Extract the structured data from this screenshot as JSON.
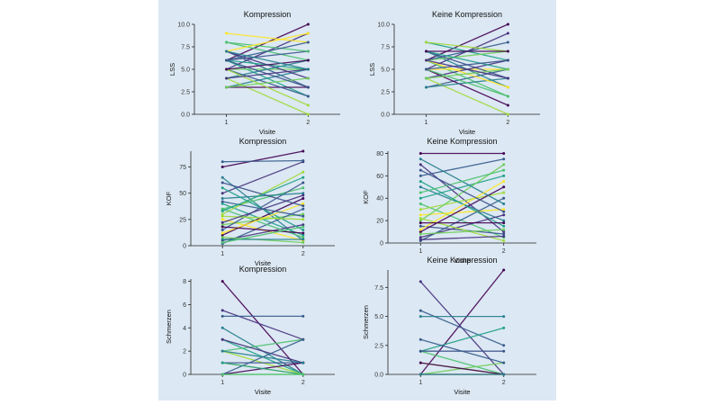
{
  "palette": [
    "#440154",
    "#46327e",
    "#365c8d",
    "#277f8e",
    "#1fa187",
    "#4ac16d",
    "#a0da39",
    "#fde725",
    "#6ece58",
    "#3b528b"
  ],
  "chart_data": [
    {
      "type": "line",
      "title": "Kompression",
      "xlabel": "Visite",
      "ylabel": "LSS",
      "x": [
        "1",
        "2"
      ],
      "ylim": [
        0,
        10
      ],
      "yticks": [
        "0.0",
        "2.5",
        "5.0",
        "7.5",
        "10.0"
      ],
      "grid": false,
      "series": [
        {
          "values": [
            6,
            10
          ]
        },
        {
          "values": [
            5,
            9
          ]
        },
        {
          "values": [
            7,
            3
          ]
        },
        {
          "values": [
            3,
            5
          ]
        },
        {
          "values": [
            6,
            2
          ]
        },
        {
          "values": [
            8,
            6
          ]
        },
        {
          "values": [
            4,
            0
          ]
        },
        {
          "values": [
            9,
            8
          ]
        },
        {
          "values": [
            5,
            5
          ]
        },
        {
          "values": [
            6,
            7
          ]
        },
        {
          "values": [
            3,
            3
          ]
        },
        {
          "values": [
            7,
            4
          ]
        },
        {
          "values": [
            5,
            2
          ]
        },
        {
          "values": [
            4,
            6
          ]
        },
        {
          "values": [
            6,
            5
          ]
        },
        {
          "values": [
            8,
            7
          ]
        },
        {
          "values": [
            5,
            1
          ]
        },
        {
          "values": [
            7,
            9
          ]
        },
        {
          "values": [
            3,
            4
          ]
        },
        {
          "values": [
            6,
            3
          ]
        },
        {
          "values": [
            5,
            6
          ]
        },
        {
          "values": [
            4,
            5
          ]
        },
        {
          "values": [
            6,
            8
          ]
        },
        {
          "values": [
            7,
            5
          ]
        }
      ]
    },
    {
      "type": "line",
      "title": "Keine Kompression",
      "xlabel": "Visite",
      "ylabel": "LSS",
      "x": [
        "1",
        "2"
      ],
      "ylim": [
        0,
        10
      ],
      "yticks": [
        "0.0",
        "2.5",
        "5.0",
        "7.5",
        "10.0"
      ],
      "grid": false,
      "series": [
        {
          "values": [
            6,
            10
          ]
        },
        {
          "values": [
            5,
            9
          ]
        },
        {
          "values": [
            3,
            5
          ]
        },
        {
          "values": [
            7,
            3
          ]
        },
        {
          "values": [
            8,
            6
          ]
        },
        {
          "values": [
            6,
            2
          ]
        },
        {
          "values": [
            4,
            0
          ]
        },
        {
          "values": [
            5,
            5
          ]
        },
        {
          "values": [
            6,
            7
          ]
        },
        {
          "values": [
            7,
            4
          ]
        },
        {
          "values": [
            5,
            1
          ]
        },
        {
          "values": [
            4,
            6
          ]
        },
        {
          "values": [
            6,
            8
          ]
        },
        {
          "values": [
            3,
            4
          ]
        },
        {
          "values": [
            7,
            5
          ]
        },
        {
          "values": [
            5,
            2
          ]
        },
        {
          "values": [
            8,
            7
          ]
        },
        {
          "values": [
            6,
            3
          ]
        },
        {
          "values": [
            4,
            5
          ]
        },
        {
          "values": [
            5,
            6
          ]
        },
        {
          "values": [
            7,
            7
          ]
        },
        {
          "values": [
            6,
            4
          ]
        }
      ]
    },
    {
      "type": "line",
      "title": "Kompression",
      "xlabel": "Visite",
      "ylabel": "KOF",
      "x": [
        "1",
        "2"
      ],
      "ylim": [
        0,
        90
      ],
      "yticks": [
        "0",
        "25",
        "50",
        "75"
      ],
      "grid": false,
      "series": [
        {
          "values": [
            75,
            90
          ]
        },
        {
          "values": [
            50,
            80
          ]
        },
        {
          "values": [
            80,
            81
          ]
        },
        {
          "values": [
            65,
            5
          ]
        },
        {
          "values": [
            40,
            10
          ]
        },
        {
          "values": [
            35,
            55
          ]
        },
        {
          "values": [
            30,
            70
          ]
        },
        {
          "values": [
            25,
            5
          ]
        },
        {
          "values": [
            20,
            30
          ]
        },
        {
          "values": [
            15,
            60
          ]
        },
        {
          "values": [
            10,
            45
          ]
        },
        {
          "values": [
            5,
            20
          ]
        },
        {
          "values": [
            2,
            35
          ]
        },
        {
          "values": [
            45,
            50
          ]
        },
        {
          "values": [
            55,
            15
          ]
        },
        {
          "values": [
            35,
            8
          ]
        },
        {
          "values": [
            28,
            25
          ]
        },
        {
          "values": [
            12,
            40
          ]
        },
        {
          "values": [
            8,
            3
          ]
        },
        {
          "values": [
            60,
            38
          ]
        },
        {
          "values": [
            18,
            12
          ]
        },
        {
          "values": [
            22,
            48
          ]
        },
        {
          "values": [
            42,
            28
          ]
        },
        {
          "values": [
            6,
            6
          ]
        },
        {
          "values": [
            33,
            65
          ]
        },
        {
          "values": [
            3,
            18
          ]
        }
      ]
    },
    {
      "type": "line",
      "title": "Keine Kompression",
      "xlabel": "Visite",
      "ylabel": "KOF",
      "x": [
        "1",
        "2"
      ],
      "ylim": [
        0,
        82
      ],
      "yticks": [
        "0",
        "20",
        "40",
        "60",
        "80"
      ],
      "grid": false,
      "series": [
        {
          "values": [
            80,
            80
          ]
        },
        {
          "values": [
            70,
            10
          ]
        },
        {
          "values": [
            60,
            75
          ]
        },
        {
          "values": [
            50,
            20
          ]
        },
        {
          "values": [
            40,
            60
          ]
        },
        {
          "values": [
            35,
            5
          ]
        },
        {
          "values": [
            30,
            45
          ]
        },
        {
          "values": [
            25,
            30
          ]
        },
        {
          "values": [
            20,
            70
          ]
        },
        {
          "values": [
            15,
            8
          ]
        },
        {
          "values": [
            10,
            50
          ]
        },
        {
          "values": [
            5,
            25
          ]
        },
        {
          "values": [
            2,
            40
          ]
        },
        {
          "values": [
            75,
            35
          ]
        },
        {
          "values": [
            55,
            15
          ]
        },
        {
          "values": [
            45,
            65
          ]
        },
        {
          "values": [
            22,
            2
          ]
        },
        {
          "values": [
            12,
            55
          ]
        },
        {
          "values": [
            8,
            12
          ]
        },
        {
          "values": [
            65,
            28
          ]
        },
        {
          "values": [
            18,
            18
          ]
        },
        {
          "values": [
            3,
            6
          ]
        }
      ]
    },
    {
      "type": "line",
      "title": "Kompression",
      "xlabel": "Visite",
      "ylabel": "Schmerzen",
      "x": [
        "1",
        "2"
      ],
      "ylim": [
        0,
        8.2
      ],
      "yticks": [
        "0",
        "2",
        "4",
        "6",
        "8"
      ],
      "grid": false,
      "series": [
        {
          "values": [
            8,
            0
          ]
        },
        {
          "values": [
            5.5,
            3
          ]
        },
        {
          "values": [
            5,
            5
          ]
        },
        {
          "values": [
            4,
            0
          ]
        },
        {
          "values": [
            3,
            0
          ]
        },
        {
          "values": [
            2,
            3
          ]
        },
        {
          "values": [
            2,
            0
          ]
        },
        {
          "values": [
            1,
            0
          ]
        },
        {
          "values": [
            0,
            0
          ]
        },
        {
          "values": [
            1,
            1
          ]
        },
        {
          "values": [
            0,
            1
          ]
        },
        {
          "values": [
            3,
            1
          ]
        },
        {
          "values": [
            0,
            3
          ]
        },
        {
          "values": [
            2,
            1
          ]
        },
        {
          "values": [
            1,
            0
          ]
        },
        {
          "values": [
            0,
            0
          ]
        }
      ]
    },
    {
      "type": "line",
      "title": "Keine Kompression",
      "xlabel": "Visite",
      "ylabel": "Schmerzen",
      "x": [
        "1",
        "2"
      ],
      "ylim": [
        0,
        9
      ],
      "yticks": [
        "0.0",
        "2.5",
        "5.0",
        "7.5"
      ],
      "grid": false,
      "series": [
        {
          "values": [
            0,
            9
          ]
        },
        {
          "values": [
            8,
            0
          ]
        },
        {
          "values": [
            5.5,
            2.5
          ]
        },
        {
          "values": [
            5,
            5
          ]
        },
        {
          "values": [
            2,
            4
          ]
        },
        {
          "values": [
            2,
            0
          ]
        },
        {
          "values": [
            1,
            0
          ]
        },
        {
          "values": [
            0,
            0
          ]
        },
        {
          "values": [
            0,
            1
          ]
        },
        {
          "values": [
            2,
            2
          ]
        },
        {
          "values": [
            1,
            0
          ]
        },
        {
          "values": [
            0,
            0
          ]
        },
        {
          "values": [
            3,
            1
          ]
        },
        {
          "values": [
            0,
            0
          ]
        }
      ]
    }
  ]
}
